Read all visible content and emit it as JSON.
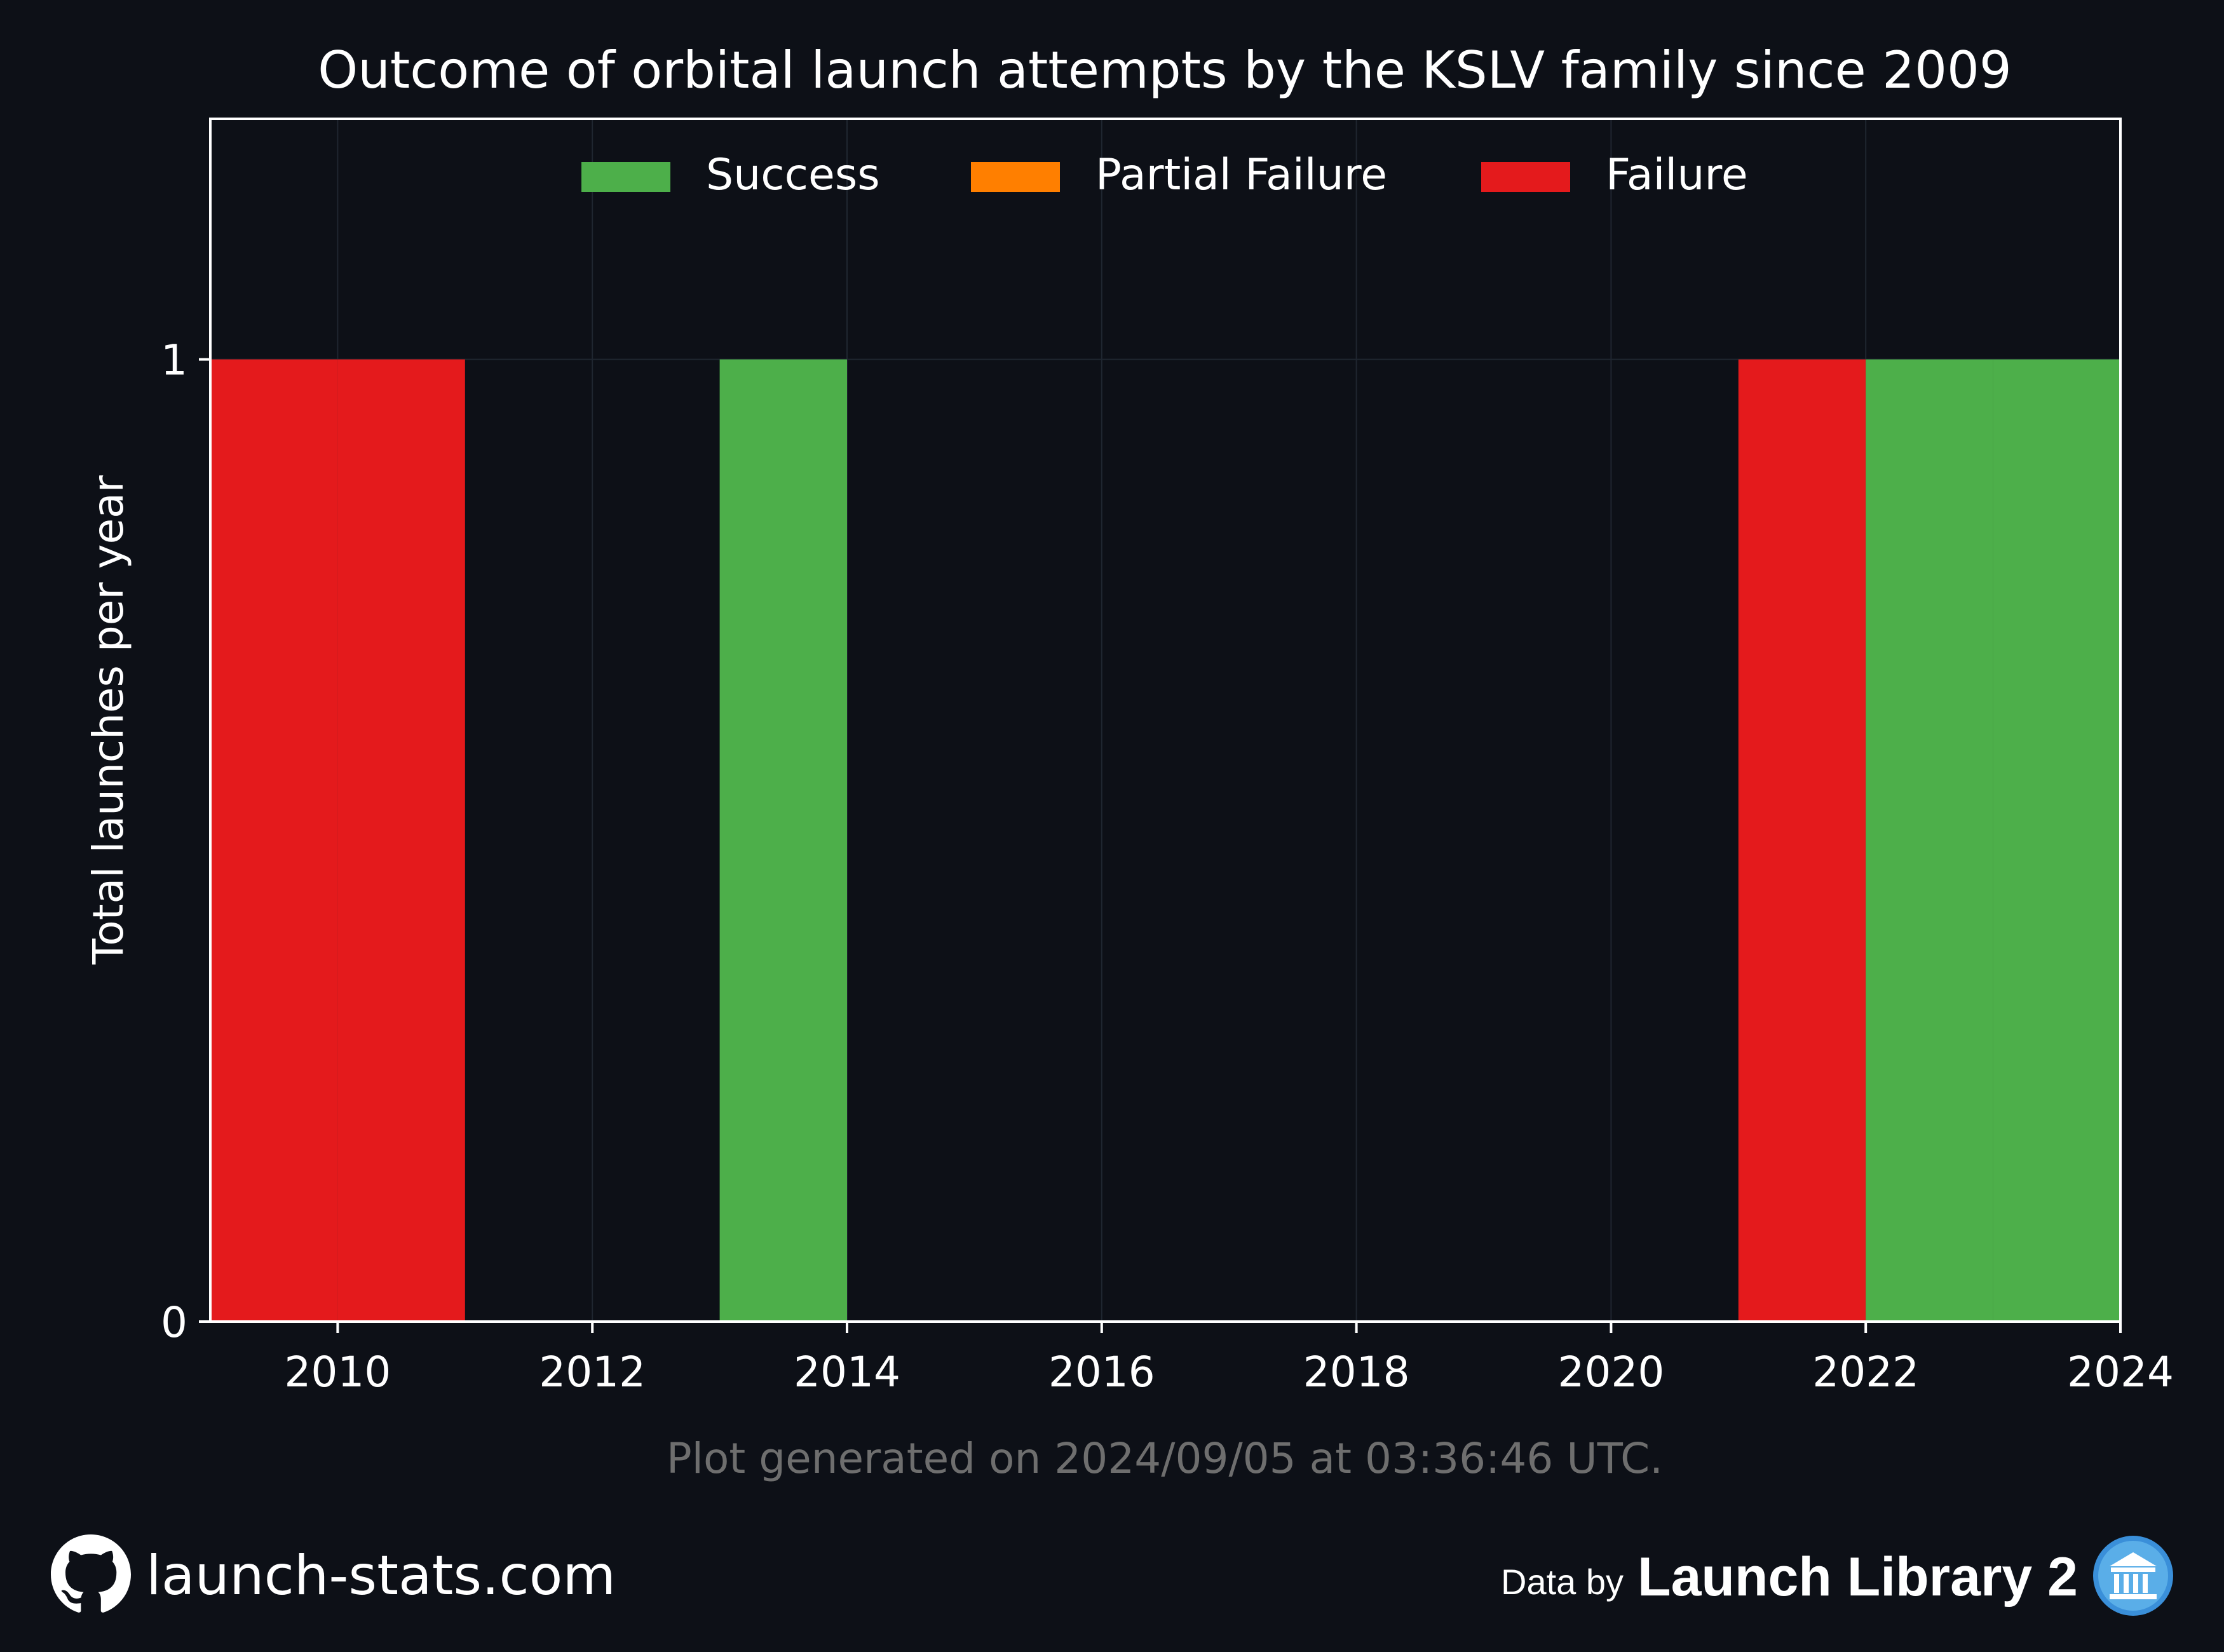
{
  "colors": {
    "background": "#0d1017",
    "success": "#4daf4a",
    "partial_failure": "#ff7f00",
    "failure": "#e41a1c",
    "grid": "#1f2630",
    "axis": "#ffffff",
    "footnote": "#6e6e6e"
  },
  "chart_data": {
    "type": "bar",
    "title": "Outcome of orbital launch attempts by the KSLV family since 2009",
    "xlabel": "",
    "ylabel": "Total launches per year",
    "xlim": [
      2009,
      2024
    ],
    "ylim": [
      0,
      1.25
    ],
    "xticks": [
      "2010",
      "2012",
      "2014",
      "2016",
      "2018",
      "2020",
      "2022",
      "2024"
    ],
    "yticks": [
      "0",
      "1"
    ],
    "grid": true,
    "stacked": true,
    "legend_position": "top-center",
    "categories": [
      2009,
      2010,
      2011,
      2012,
      2013,
      2014,
      2015,
      2016,
      2017,
      2018,
      2019,
      2020,
      2021,
      2022,
      2023
    ],
    "series": [
      {
        "name": "Success",
        "color_key": "success",
        "values": [
          0,
          0,
          0,
          0,
          1,
          0,
          0,
          0,
          0,
          0,
          0,
          0,
          0,
          1,
          1
        ]
      },
      {
        "name": "Partial Failure",
        "color_key": "partial_failure",
        "values": [
          0,
          0,
          0,
          0,
          0,
          0,
          0,
          0,
          0,
          0,
          0,
          0,
          0,
          0,
          0
        ]
      },
      {
        "name": "Failure",
        "color_key": "failure",
        "values": [
          1,
          1,
          0,
          0,
          0,
          0,
          0,
          0,
          0,
          0,
          0,
          0,
          1,
          0,
          0
        ]
      }
    ]
  },
  "footnote": "Plot generated on 2024/09/05 at 03:36:46 UTC.",
  "footer": {
    "site": "launch-stats.com",
    "site_icon": "github-icon",
    "data_by": "Data by",
    "source": "Launch Library 2",
    "source_icon": "library-icon"
  }
}
